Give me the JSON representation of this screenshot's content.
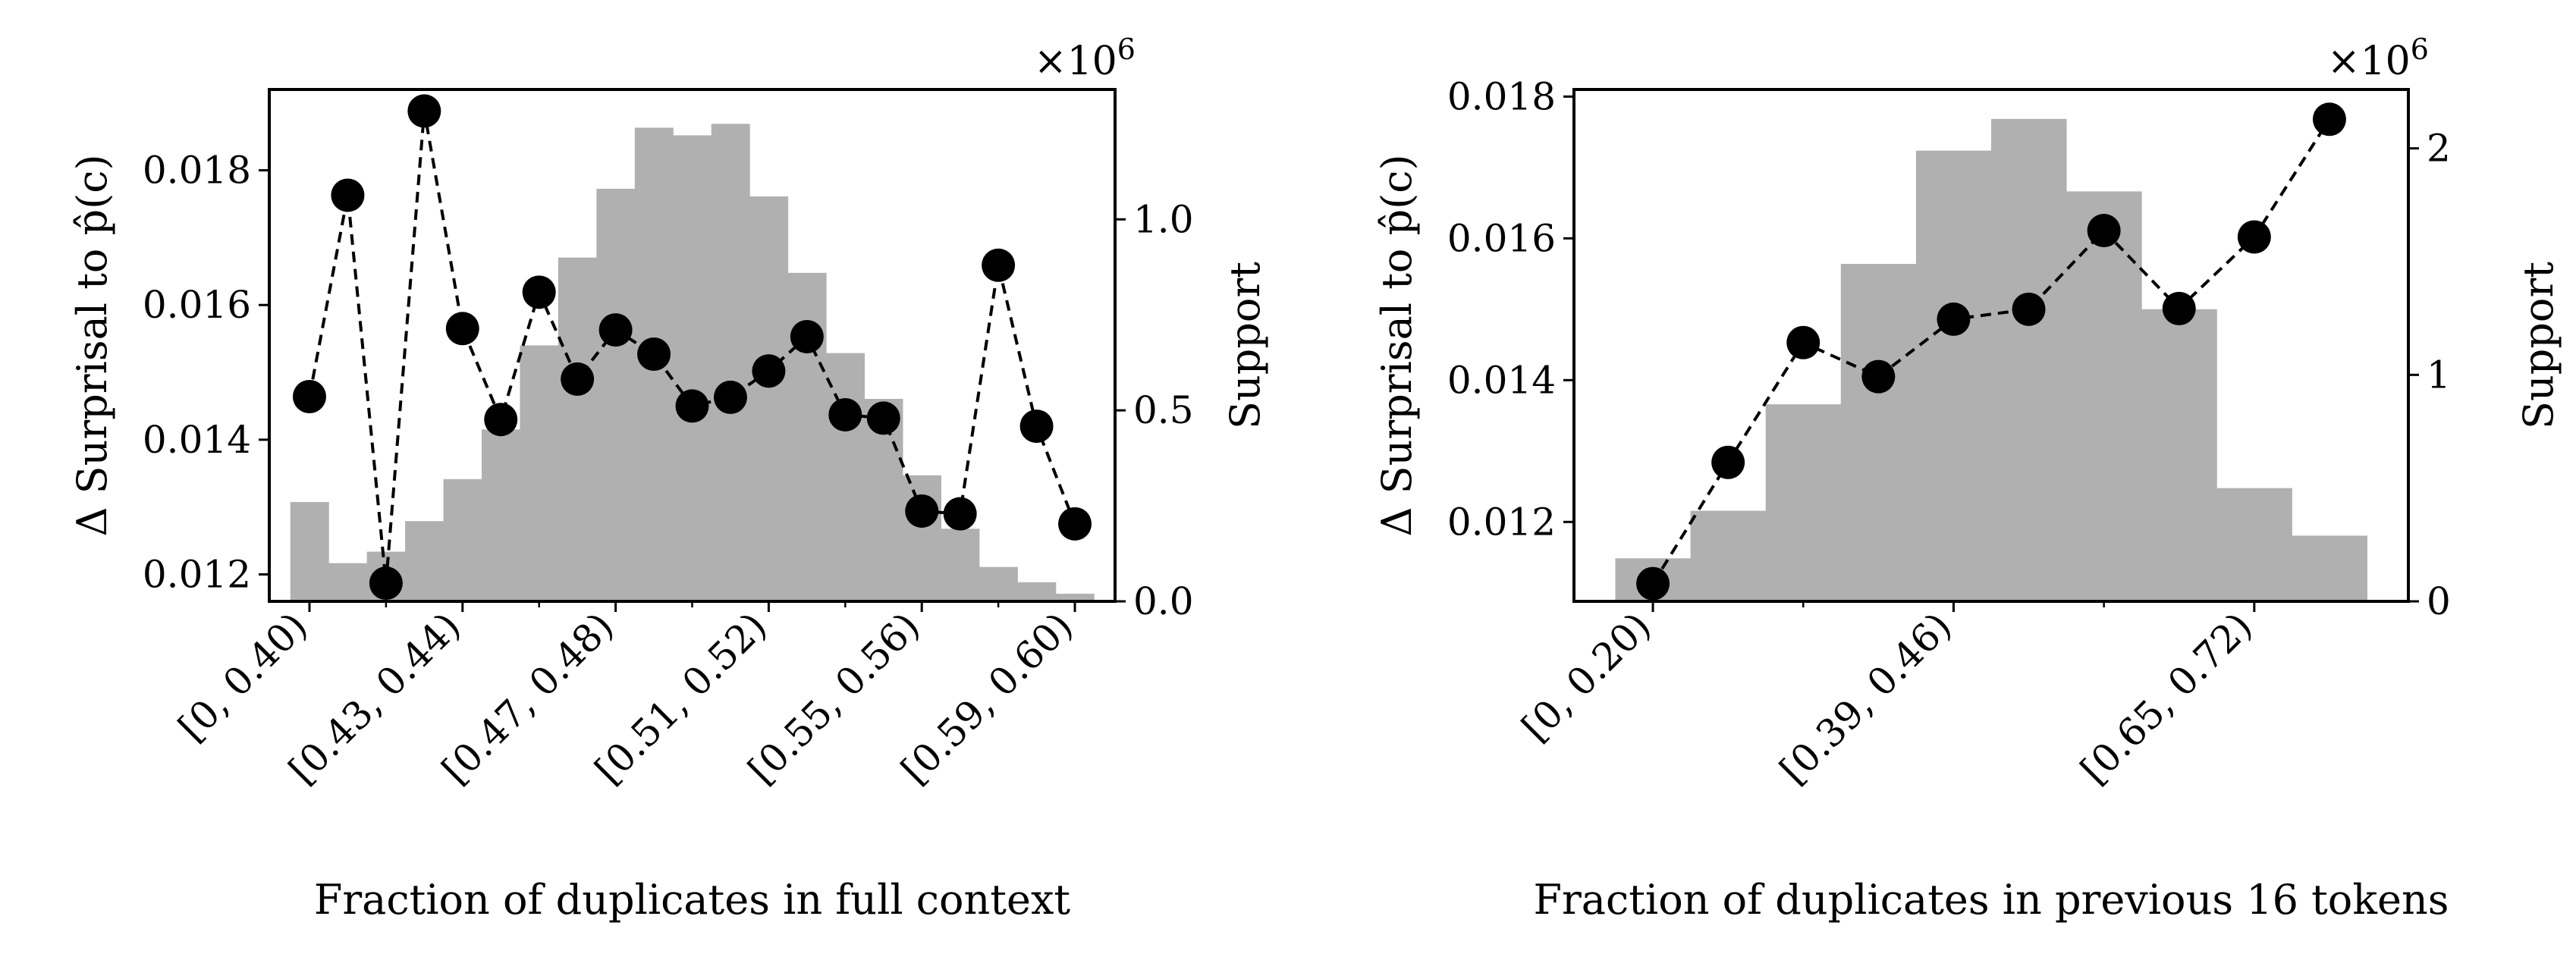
{
  "chart_data": [
    {
      "type": "bar+line",
      "xlabel": "Fraction of duplicates in full context",
      "ylabel_left": "Δ Surprisal to p̂(c)",
      "ylabel_right": "Support",
      "right_multiplier": "×10",
      "right_multiplier_exp": "6",
      "ylim_left": [
        0.0116,
        0.0192
      ],
      "ylim_right": [
        0,
        1.34
      ],
      "yticks_left": [
        "0.012",
        "0.014",
        "0.016",
        "0.018"
      ],
      "yticks_left_values": [
        0.012,
        0.014,
        0.016,
        0.018
      ],
      "yticks_right": [
        "0.0",
        "0.5",
        "1.0"
      ],
      "yticks_right_values": [
        0,
        0.5,
        1.0
      ],
      "xtick_labels": [
        "[0, 0.40)",
        "[0.43, 0.44)",
        "[0.47, 0.48)",
        "[0.51, 0.52)",
        "[0.55, 0.56)",
        "[0.59, 0.60)"
      ],
      "xtick_label_indices": [
        0,
        4,
        8,
        12,
        16,
        20
      ],
      "num_bins": 21,
      "support_millions": [
        0.26,
        0.1,
        0.13,
        0.21,
        0.32,
        0.45,
        0.67,
        0.9,
        1.08,
        1.24,
        1.22,
        1.25,
        1.06,
        0.86,
        0.65,
        0.53,
        0.33,
        0.19,
        0.09,
        0.05,
        0.02
      ],
      "surprisal": [
        0.01464,
        0.01763,
        0.01187,
        0.01888,
        0.01565,
        0.0143,
        0.01619,
        0.0149,
        0.01563,
        0.01527,
        0.0145,
        0.01463,
        0.01502,
        0.01553,
        0.01437,
        0.01432,
        0.01294,
        0.0129,
        0.01659,
        0.0142,
        0.01275
      ]
    },
    {
      "type": "bar+line",
      "xlabel": "Fraction of duplicates in previous 16 tokens",
      "ylabel_left": "Δ Surprisal to p̂(c)",
      "ylabel_right": "Support",
      "right_multiplier": "×10",
      "right_multiplier_exp": "6",
      "ylim_left": [
        0.01088,
        0.0181
      ],
      "ylim_right": [
        0,
        2.26
      ],
      "yticks_left": [
        "0.012",
        "0.014",
        "0.016",
        "0.018"
      ],
      "yticks_left_values": [
        0.012,
        0.014,
        0.016,
        0.018
      ],
      "yticks_right": [
        "0",
        "1",
        "2"
      ],
      "yticks_right_values": [
        0,
        1,
        2
      ],
      "xtick_labels": [
        "[0, 0.20)",
        "[0.39, 0.46)",
        "[0.65, 0.72)"
      ],
      "xtick_label_indices": [
        0,
        4,
        8
      ],
      "num_bins": 10,
      "support_millions": [
        0.19,
        0.4,
        0.87,
        1.49,
        1.99,
        2.13,
        1.81,
        1.29,
        0.5,
        0.29
      ],
      "surprisal": [
        0.01113,
        0.01284,
        0.01453,
        0.01405,
        0.01486,
        0.015,
        0.01611,
        0.01501,
        0.01602,
        0.01768
      ]
    }
  ]
}
